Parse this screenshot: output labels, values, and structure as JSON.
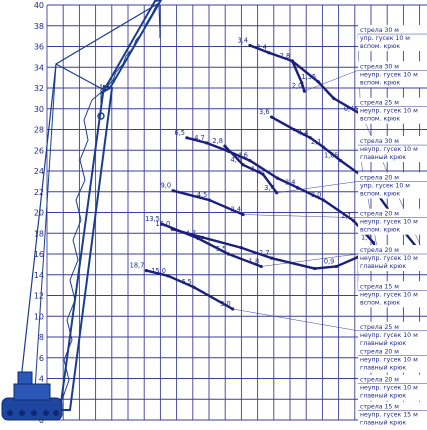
{
  "chart_data": {
    "type": "line",
    "title": "",
    "xlabel": "",
    "ylabel": "",
    "ylim": [
      0,
      40
    ],
    "xlim": [
      0,
      44
    ],
    "y_ticks": [
      "0",
      "2",
      "4",
      "6",
      "8",
      "10",
      "12",
      "14",
      "16",
      "18",
      "20",
      "22",
      "24",
      "26",
      "28",
      "30",
      "32",
      "34",
      "36",
      "38",
      "40"
    ],
    "grid": true,
    "colors": {
      "grid": "#3c3f9c",
      "curve": "#1a1f7a",
      "text": "#1f2a8a",
      "crane": "#1a3d8f"
    },
    "series": [
      {
        "key": "c1",
        "label_id": 0,
        "points": [
          [
            23.5,
            36.1
          ],
          [
            25.7,
            35.4
          ],
          [
            28.4,
            34.6
          ],
          [
            31.4,
            32.6
          ],
          [
            33.2,
            31.0
          ],
          [
            36.3,
            29.5
          ]
        ],
        "point_labels": [
          {
            "i": 0,
            "text": "3,4"
          },
          {
            "i": 1,
            "text": "2,4"
          },
          {
            "i": 2,
            "text": "2,8"
          },
          {
            "i": 3,
            "text": "1,35"
          },
          {
            "i": 5,
            "text": "0,45"
          }
        ]
      },
      {
        "key": "c1b",
        "label_id": 1,
        "points": [
          [
            28.4,
            34.6
          ],
          [
            29.5,
            32.5
          ],
          [
            29.8,
            31.7
          ]
        ],
        "point_labels": [
          {
            "i": 2,
            "text": "2,0"
          }
        ]
      },
      {
        "key": "c2",
        "label_id": 2,
        "points": [
          [
            26.0,
            29.2
          ],
          [
            28.6,
            28.0
          ],
          [
            30.5,
            27.2
          ],
          [
            32.0,
            26.3
          ],
          [
            34.0,
            25.0
          ],
          [
            36.5,
            23.5
          ],
          [
            38.5,
            21.5
          ],
          [
            41.3,
            18.2
          ],
          [
            44.0,
            15.4
          ]
        ],
        "point_labels": [
          {
            "i": 0,
            "text": "3,6"
          },
          {
            "i": 2,
            "text": "4,4"
          },
          {
            "i": 3,
            "text": "2,1"
          },
          {
            "i": 4,
            "text": "1,65"
          },
          {
            "i": 6,
            "text": "2,55"
          },
          {
            "i": 7,
            "text": "2,2"
          },
          {
            "i": 8,
            "text": "1,5"
          }
        ]
      },
      {
        "key": "c3",
        "label_id": 3,
        "points": [
          [
            16.2,
            27.2
          ],
          [
            18.5,
            26.7
          ],
          [
            21.0,
            25.9
          ],
          [
            23.5,
            25.0
          ],
          [
            26.7,
            23.3
          ],
          [
            29.0,
            22.4
          ],
          [
            32.0,
            21.2
          ],
          [
            35.5,
            19.2
          ],
          [
            37.8,
            17.1
          ],
          [
            38.5,
            15.4
          ]
        ],
        "point_labels": [
          {
            "i": 0,
            "text": "6,5"
          },
          {
            "i": 1,
            "text": "4,7"
          },
          {
            "i": 3,
            "text": "4,6"
          },
          {
            "i": 5,
            "text": "3,4"
          },
          {
            "i": 6,
            "text": "3,0"
          },
          {
            "i": 7,
            "text": "2,1"
          },
          {
            "i": 8,
            "text": "1,7"
          },
          {
            "i": 9,
            "text": "0,9"
          }
        ]
      },
      {
        "key": "c4",
        "label_id": 4,
        "points": [
          [
            20.6,
            26.4
          ],
          [
            22.7,
            24.6
          ],
          [
            25.0,
            23.7
          ],
          [
            26.6,
            21.9
          ]
        ],
        "point_labels": [
          {
            "i": 0,
            "text": "2,8"
          },
          {
            "i": 1,
            "text": "4,0"
          },
          {
            "i": 2,
            "text": "4,1"
          },
          {
            "i": 3,
            "text": "3,4"
          }
        ]
      },
      {
        "key": "c5",
        "label_id": 5,
        "points": [
          [
            14.6,
            22.1
          ],
          [
            18.8,
            21.2
          ],
          [
            22.7,
            19.8
          ]
        ],
        "point_labels": [
          {
            "i": 0,
            "text": "9,0"
          },
          {
            "i": 1,
            "text": "4,5"
          },
          {
            "i": 2,
            "text": "2,4"
          }
        ]
      },
      {
        "key": "c6",
        "label_id": 6,
        "points": [
          [
            13.3,
            18.9
          ],
          [
            17.5,
            17.5
          ],
          [
            21.0,
            16.0
          ],
          [
            24.8,
            14.8
          ]
        ],
        "point_labels": [
          {
            "i": 0,
            "text": "13,5"
          },
          {
            "i": 1,
            "text": "4,7"
          },
          {
            "i": 2,
            "text": "5,5"
          },
          {
            "i": 3,
            "text": "1,8"
          }
        ]
      },
      {
        "key": "c7",
        "label_id": 7,
        "points": [
          [
            14.5,
            18.4
          ],
          [
            18.0,
            17.6
          ],
          [
            22.5,
            16.6
          ],
          [
            26.0,
            15.6
          ],
          [
            31.0,
            14.6
          ],
          [
            33.5,
            14.8
          ],
          [
            36.0,
            15.7
          ]
        ],
        "point_labels": [
          {
            "i": 0,
            "text": "15,0"
          },
          {
            "i": 3,
            "text": "2,7"
          },
          {
            "i": 5,
            "text": "0,9"
          }
        ]
      },
      {
        "key": "c8",
        "label_id": 8,
        "points": [
          [
            11.5,
            14.4
          ],
          [
            14.0,
            13.9
          ],
          [
            17.0,
            12.8
          ],
          [
            21.5,
            10.7
          ]
        ],
        "point_labels": [
          {
            "i": 0,
            "text": "18,7"
          },
          {
            "i": 1,
            "text": "15,0"
          },
          {
            "i": 2,
            "text": "6,5"
          },
          {
            "i": 3,
            "text": "3,0"
          }
        ]
      }
    ],
    "legend": [
      {
        "lines": [
          "стрела 30 м",
          "упр. гусек 10 м",
          "вспом. крюк"
        ],
        "y": 37.2
      },
      {
        "lines": [
          "стрела 30 м",
          "неупр. гусек 10 м",
          "вспом. крюк"
        ],
        "y": 33.7
      },
      {
        "lines": [
          "стрела 25 м",
          "неупр. гусек 10 м",
          "вспом. крюк"
        ],
        "y": 30.2
      },
      {
        "lines": [
          "стрела 30 м",
          "неупр. гусек 10 м",
          "главный крюк"
        ],
        "y": 26.5
      },
      {
        "lines": [
          "стрела 20 м",
          "упр. гусек 10 м",
          "вспом. крюк"
        ],
        "y": 23.0
      },
      {
        "lines": [
          "стрела 20 м",
          "неупр. гусек 10 м",
          "вспом. крюк"
        ],
        "y": 19.5
      },
      {
        "lines": [
          "стрела 20 м",
          "неупр. гусек 10 м",
          "главный крюк"
        ],
        "y": 16.0
      },
      {
        "lines": [
          "стрела 15 м",
          "неупр. гусек 10 м",
          "вспом. крюк"
        ],
        "y": 12.5
      },
      {
        "lines": [
          "стрела 25 м",
          "неупр. гусек 10 м",
          "главный крюк"
        ],
        "y": 8.6
      },
      {
        "lines": [
          "стрела 20 м",
          "неупр. гусек 10 м",
          "главный крюк"
        ],
        "y": 6.2
      },
      {
        "lines": [
          "стрела 20 м",
          "неупр. гусек 10 м",
          "главный крюк"
        ],
        "y": 3.5
      },
      {
        "lines": [
          "стрела 15 м",
          "неупр. гусек 15 м",
          "главный крюк"
        ],
        "y": 0.9
      }
    ]
  }
}
